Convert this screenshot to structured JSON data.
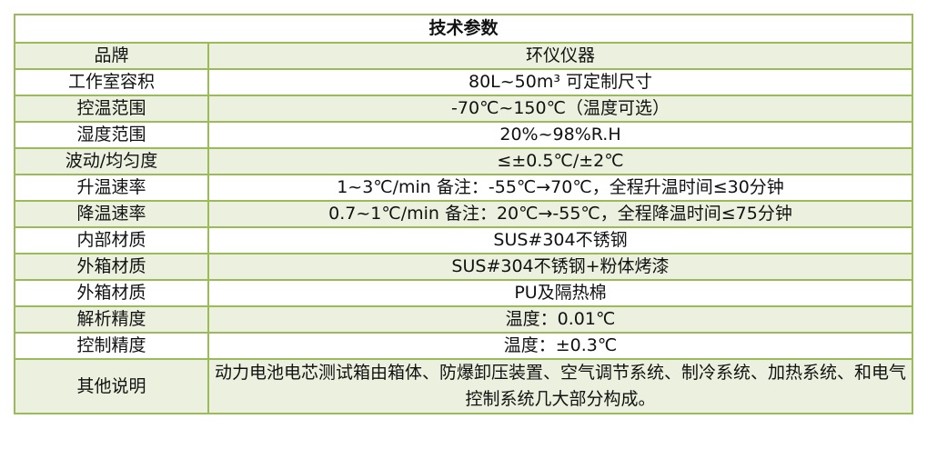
{
  "title": "技术参数",
  "rows": [
    {
      "label": "品牌",
      "value": "环仪仪器"
    },
    {
      "label": "工作室容积",
      "value": "80L~50m³ 可定制尺寸"
    },
    {
      "label": "控温范围",
      "value": "-70℃~150℃（温度可选）"
    },
    {
      "label": "湿度范围",
      "value": "20%~98%R.H"
    },
    {
      "label": "波动/均匀度",
      "value": "≤±0.5℃/±2℃"
    },
    {
      "label": "升温速率",
      "value": "1~3℃/min 备注：-55℃→70℃，全程升温时间≤30分钟"
    },
    {
      "label": "降温速率",
      "value": "0.7~1℃/min 备注：20℃→-55℃，全程降温时间≤75分钟"
    },
    {
      "label": "内部材质",
      "value": "SUS#304不锈钢"
    },
    {
      "label": "外箱材质",
      "value": "SUS#304不锈钢+粉体烤漆"
    },
    {
      "label": "外箱材质",
      "value": "PU及隔热棉"
    },
    {
      "label": "解析精度",
      "value": "温度：0.01℃"
    },
    {
      "label": "控制精度",
      "value": "温度：±0.3℃"
    },
    {
      "label": "其他说明",
      "value": "动力电池电芯测试箱由箱体、防爆卸压装置、空气调节系统、制冷系统、加热系统、和电气控制系统几大部分构成。"
    }
  ],
  "colors": {
    "border": "#9bbb59",
    "stripe": "#ebf1de"
  }
}
